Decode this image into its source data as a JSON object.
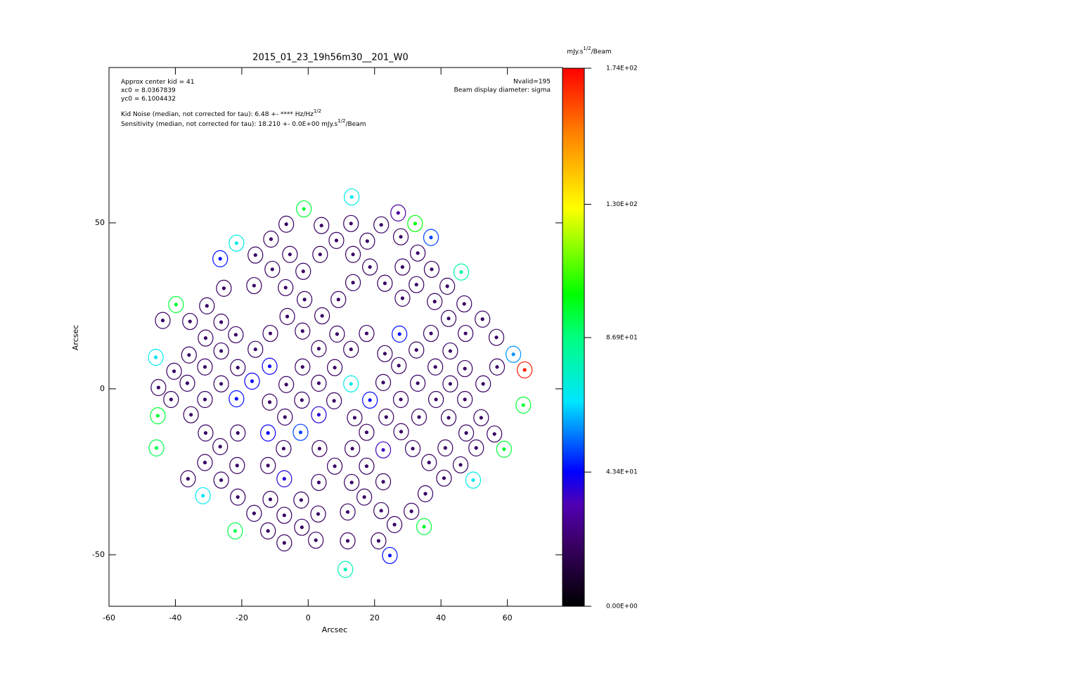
{
  "chart_data": {
    "type": "scatter",
    "title": "2015_01_23_19h56m30__201_W0",
    "x_label": "Arcsec",
    "y_label": "Arcsec",
    "xlim": [
      -60,
      76.6
    ],
    "ylim": [
      -65.5,
      96.8
    ],
    "xticks": [
      -60,
      -40,
      -20,
      0,
      20,
      40,
      60
    ],
    "yticks": [
      -50,
      0,
      50
    ],
    "annotations_left": [
      {
        "parts": [
          "Approx center kid = 41"
        ]
      },
      {
        "parts": [
          "xc0 = 8.0367839"
        ]
      },
      {
        "parts": [
          "yc0 = 6.1004432"
        ]
      },
      {
        "parts": [
          "Kid Noise (median, not corrected for tau):  6.48 +- **** Hz/Hz",
          "1/2"
        ]
      },
      {
        "parts": [
          "Sensitivity (median, not corrected for tau): 18.210 +- 0.0E+00 mJy.s",
          "1/2",
          "/Beam"
        ]
      }
    ],
    "annotations_right": [
      "Nvalid=195",
      "Beam display diameter: sigma"
    ],
    "colorbar": {
      "title": [
        "mJy.s",
        "1/2",
        "/Beam"
      ],
      "lim": [
        0,
        174
      ],
      "ticks": [
        {
          "value": 0,
          "label": "0.00E+00"
        },
        {
          "value": 43.4,
          "label": "4.34E+01"
        },
        {
          "value": 86.9,
          "label": "8.69E+01"
        },
        {
          "value": 130,
          "label": "1.30E+02"
        },
        {
          "value": 174,
          "label": "1.74E+02"
        }
      ]
    },
    "points": [
      [
        13.1,
        57.8,
        70
      ],
      [
        -1.3,
        54.2,
        95
      ],
      [
        27.1,
        53.0,
        30
      ],
      [
        32.2,
        49.8,
        100
      ],
      [
        -6.6,
        49.6,
        20
      ],
      [
        4.0,
        49.2,
        20
      ],
      [
        12.9,
        49.8,
        20
      ],
      [
        22.0,
        49.4,
        20
      ],
      [
        -11.2,
        45.1,
        20
      ],
      [
        8.5,
        44.7,
        20
      ],
      [
        17.8,
        44.5,
        20
      ],
      [
        27.9,
        45.8,
        20
      ],
      [
        37.0,
        45.6,
        50
      ],
      [
        -21.6,
        43.9,
        70
      ],
      [
        -5.5,
        40.5,
        20
      ],
      [
        3.6,
        40.5,
        20
      ],
      [
        13.5,
        40.5,
        20
      ],
      [
        33.0,
        40.9,
        20
      ],
      [
        -15.9,
        40.3,
        20
      ],
      [
        -26.5,
        39.2,
        45
      ],
      [
        -10.8,
        36.0,
        20
      ],
      [
        -1.5,
        35.4,
        20
      ],
      [
        18.6,
        36.7,
        20
      ],
      [
        28.4,
        36.7,
        20
      ],
      [
        37.2,
        36.0,
        20
      ],
      [
        46.1,
        35.2,
        80
      ],
      [
        13.5,
        32.0,
        20
      ],
      [
        23.1,
        31.8,
        20
      ],
      [
        32.6,
        31.4,
        20
      ],
      [
        41.9,
        30.9,
        20
      ],
      [
        -25.4,
        30.3,
        20
      ],
      [
        -16.3,
        31.1,
        20
      ],
      [
        -6.8,
        30.5,
        20
      ],
      [
        -1.1,
        26.9,
        20
      ],
      [
        9.1,
        26.9,
        20
      ],
      [
        28.4,
        27.3,
        20
      ],
      [
        38.1,
        26.3,
        20
      ],
      [
        47.0,
        25.6,
        20
      ],
      [
        -39.8,
        25.4,
        95
      ],
      [
        -30.5,
        25.0,
        20
      ],
      [
        4.2,
        22.0,
        20
      ],
      [
        -6.3,
        21.8,
        20
      ],
      [
        42.3,
        21.2,
        20
      ],
      [
        -43.8,
        20.6,
        20
      ],
      [
        -35.6,
        20.3,
        20
      ],
      [
        -26.2,
        20.1,
        20
      ],
      [
        52.5,
        21.0,
        20
      ],
      [
        -30.9,
        15.3,
        20
      ],
      [
        -21.8,
        16.3,
        20
      ],
      [
        -11.4,
        16.7,
        20
      ],
      [
        -1.7,
        17.4,
        20
      ],
      [
        8.7,
        16.5,
        20
      ],
      [
        17.6,
        16.7,
        20
      ],
      [
        27.5,
        16.5,
        45
      ],
      [
        37.0,
        16.7,
        20
      ],
      [
        47.4,
        16.7,
        20
      ],
      [
        56.7,
        15.5,
        20
      ],
      [
        -15.9,
        11.9,
        20
      ],
      [
        -26.2,
        11.4,
        20
      ],
      [
        3.2,
        12.1,
        20
      ],
      [
        12.9,
        11.9,
        20
      ],
      [
        23.1,
        10.6,
        20
      ],
      [
        32.6,
        11.7,
        20
      ],
      [
        42.8,
        11.4,
        20
      ],
      [
        -35.9,
        10.2,
        20
      ],
      [
        -45.9,
        9.5,
        68
      ],
      [
        61.8,
        10.4,
        58
      ],
      [
        -11.6,
        6.8,
        42
      ],
      [
        -31.1,
        6.6,
        20
      ],
      [
        -21.2,
        6.4,
        20
      ],
      [
        -1.7,
        6.6,
        20
      ],
      [
        8.0,
        6.4,
        20
      ],
      [
        27.3,
        7.0,
        20
      ],
      [
        38.3,
        6.6,
        20
      ],
      [
        47.2,
        6.1,
        20
      ],
      [
        56.9,
        6.6,
        20
      ],
      [
        65.2,
        5.7,
        170
      ],
      [
        -40.4,
        5.3,
        20
      ],
      [
        -16.9,
        2.3,
        42
      ],
      [
        3.2,
        1.7,
        20
      ],
      [
        12.9,
        1.5,
        70
      ],
      [
        22.6,
        1.9,
        20
      ],
      [
        33.0,
        1.7,
        20
      ],
      [
        42.8,
        1.5,
        20
      ],
      [
        52.7,
        1.5,
        20
      ],
      [
        -36.4,
        1.7,
        20
      ],
      [
        -26.2,
        1.5,
        20
      ],
      [
        -6.6,
        1.3,
        20
      ],
      [
        -45.1,
        0.4,
        20
      ],
      [
        -41.3,
        -3.2,
        20
      ],
      [
        -31.1,
        -3.2,
        20
      ],
      [
        -21.6,
        -3.0,
        45
      ],
      [
        -11.6,
        -4.0,
        20
      ],
      [
        -1.9,
        -3.4,
        20
      ],
      [
        18.6,
        -3.4,
        45
      ],
      [
        38.5,
        -3.2,
        20
      ],
      [
        47.2,
        -3.2,
        20
      ],
      [
        7.8,
        -3.6,
        20
      ],
      [
        27.9,
        -3.2,
        20
      ],
      [
        64.8,
        -4.9,
        95
      ],
      [
        -35.3,
        -7.8,
        20
      ],
      [
        -7.0,
        -8.5,
        20
      ],
      [
        3.2,
        -7.8,
        38
      ],
      [
        14.0,
        -8.7,
        20
      ],
      [
        23.5,
        -8.5,
        20
      ],
      [
        33.4,
        -8.5,
        20
      ],
      [
        42.3,
        -8.7,
        20
      ],
      [
        52.1,
        -8.7,
        20
      ],
      [
        -45.3,
        -8.1,
        95
      ],
      [
        -30.9,
        -13.3,
        20
      ],
      [
        -21.2,
        -13.3,
        20
      ],
      [
        -12.1,
        -13.3,
        42
      ],
      [
        -2.3,
        -13.1,
        50
      ],
      [
        17.6,
        -13.1,
        20
      ],
      [
        28.0,
        -12.9,
        20
      ],
      [
        47.6,
        -13.3,
        20
      ],
      [
        56.1,
        -13.6,
        20
      ],
      [
        -45.7,
        -17.8,
        92
      ],
      [
        -26.5,
        -17.4,
        20
      ],
      [
        -7.4,
        -18.0,
        20
      ],
      [
        3.4,
        -18.0,
        20
      ],
      [
        13.3,
        -18.0,
        20
      ],
      [
        22.6,
        -18.4,
        35
      ],
      [
        31.5,
        -18.0,
        20
      ],
      [
        41.3,
        -17.8,
        20
      ],
      [
        50.6,
        -17.8,
        20
      ],
      [
        59.0,
        -18.2,
        95
      ],
      [
        -31.1,
        -22.2,
        20
      ],
      [
        -21.4,
        -23.1,
        20
      ],
      [
        -12.1,
        -23.1,
        20
      ],
      [
        8.0,
        -23.3,
        20
      ],
      [
        17.6,
        -23.3,
        20
      ],
      [
        36.4,
        -22.2,
        20
      ],
      [
        45.9,
        -22.9,
        20
      ],
      [
        -7.2,
        -27.1,
        38
      ],
      [
        -36.2,
        -27.1,
        20
      ],
      [
        -26.2,
        -27.5,
        20
      ],
      [
        3.2,
        -28.2,
        20
      ],
      [
        13.1,
        -28.2,
        20
      ],
      [
        22.6,
        -28.0,
        20
      ],
      [
        40.9,
        -26.9,
        20
      ],
      [
        49.7,
        -27.5,
        70
      ],
      [
        -31.7,
        -32.2,
        68
      ],
      [
        -21.2,
        -32.6,
        20
      ],
      [
        -11.4,
        -33.3,
        20
      ],
      [
        -2.1,
        -33.5,
        20
      ],
      [
        16.9,
        -32.6,
        20
      ],
      [
        35.3,
        -31.6,
        20
      ],
      [
        -16.3,
        -37.5,
        20
      ],
      [
        -7.2,
        -38.1,
        20
      ],
      [
        3.0,
        -37.7,
        20
      ],
      [
        11.9,
        -37.1,
        20
      ],
      [
        22.0,
        -36.7,
        20
      ],
      [
        31.1,
        -36.9,
        20
      ],
      [
        -22.0,
        -42.8,
        92
      ],
      [
        -12.1,
        -42.8,
        20
      ],
      [
        -1.9,
        -41.7,
        20
      ],
      [
        26.0,
        -40.9,
        20
      ],
      [
        34.9,
        -41.5,
        95
      ],
      [
        -7.2,
        -46.4,
        20
      ],
      [
        2.3,
        -45.6,
        20
      ],
      [
        11.9,
        -45.8,
        20
      ],
      [
        21.2,
        -45.8,
        20
      ],
      [
        24.6,
        -50.2,
        45
      ],
      [
        11.2,
        -54.4,
        78
      ]
    ]
  }
}
